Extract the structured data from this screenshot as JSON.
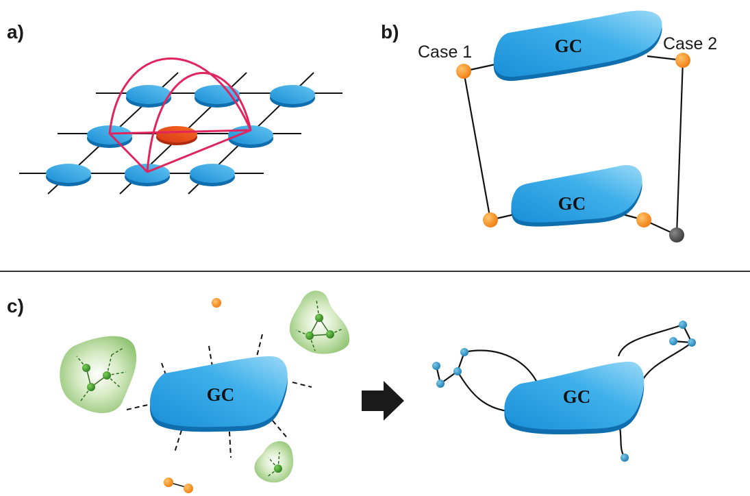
{
  "panels": {
    "a": {
      "label": "a)"
    },
    "b": {
      "label": "b)",
      "case1": "Case 1",
      "case2": "Case 2",
      "gc_top": "GC",
      "gc_bottom": "GC"
    },
    "c": {
      "label": "c)",
      "gc_left": "GC",
      "gc_right": "GC"
    }
  },
  "colors": {
    "blue_node": "#29a3e0",
    "red_node": "#e8401c",
    "orange_node": "#f7941d",
    "gray_node": "#555555",
    "magenta_link": "#e0245e",
    "green_cluster": "#8dc26f",
    "green_node": "#3f8f2b",
    "arrow": "#1a1a1a"
  },
  "icons": {
    "arrow": "right-arrow-icon"
  }
}
